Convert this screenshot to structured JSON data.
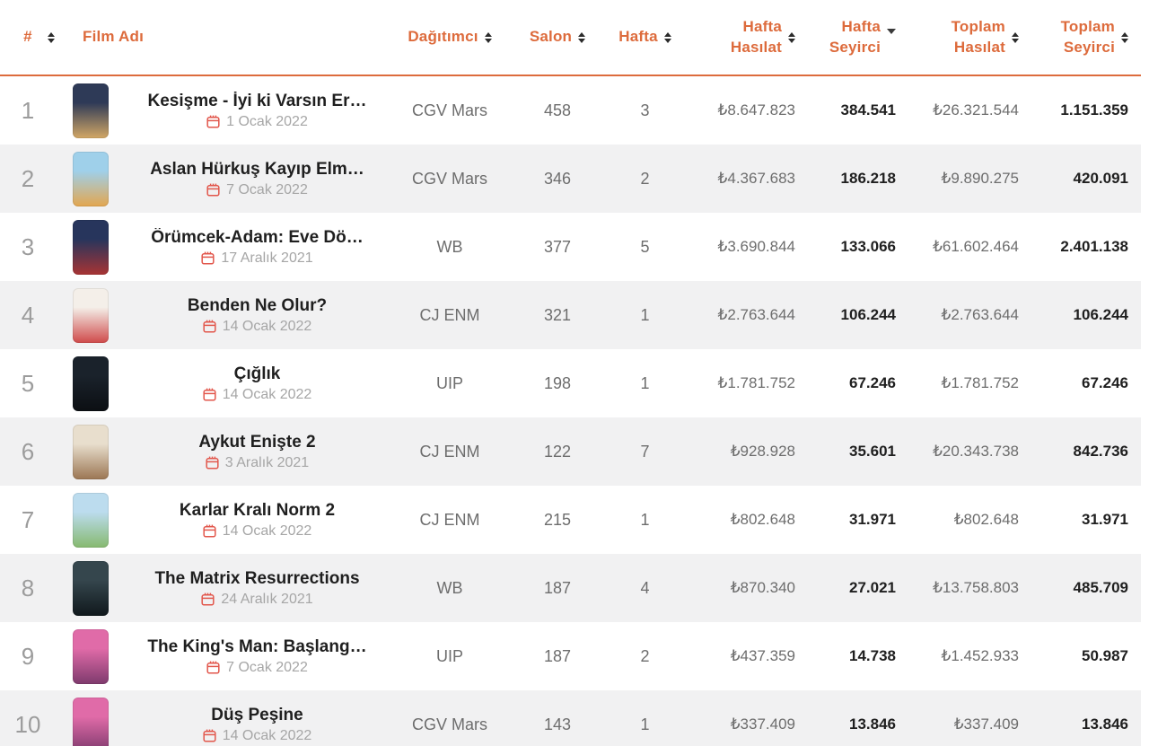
{
  "colors": {
    "accent_orange": "#dd6b3c",
    "header_border": "#dd6b3c",
    "zebra_row": "#f1f1f2",
    "calendar_icon": "#e2574c",
    "rank_gray": "#9c9c9c",
    "value_gray": "#6d6d6d",
    "value_dark": "#1f1f1f"
  },
  "columns": [
    {
      "key": "rank",
      "label": "#",
      "lines": [
        "#"
      ],
      "sort": "both",
      "align": "left"
    },
    {
      "key": "film",
      "label": "Film Adı",
      "lines": [
        "Film Adı"
      ],
      "sort": "none",
      "align": "left"
    },
    {
      "key": "distributor",
      "label": "Dağıtımcı",
      "lines": [
        "Dağıtımcı"
      ],
      "sort": "both",
      "align": "center"
    },
    {
      "key": "salon",
      "label": "Salon",
      "lines": [
        "Salon"
      ],
      "sort": "both",
      "align": "center"
    },
    {
      "key": "week",
      "label": "Hafta",
      "lines": [
        "Hafta"
      ],
      "sort": "both",
      "align": "center"
    },
    {
      "key": "week_gross",
      "label": "Hafta Hasılat",
      "lines": [
        "Hafta",
        "Hasılat"
      ],
      "sort": "both",
      "align": "right"
    },
    {
      "key": "week_admissions",
      "label": "Hafta Seyirci",
      "lines": [
        "Hafta",
        "Seyirci"
      ],
      "sort": "desc",
      "align": "right"
    },
    {
      "key": "total_gross",
      "label": "Toplam Hasılat",
      "lines": [
        "Toplam",
        "Hasılat"
      ],
      "sort": "both",
      "align": "right"
    },
    {
      "key": "total_admissions",
      "label": "Toplam Seyirci",
      "lines": [
        "Toplam",
        "Seyirci"
      ],
      "sort": "both",
      "align": "right"
    }
  ],
  "rows": [
    {
      "rank": "1",
      "title": "Kesişme - İyi ki Varsın Er…",
      "release_date": "1 Ocak 2022",
      "distributor": "CGV Mars",
      "salon": "458",
      "week": "3",
      "week_gross": "₺8.647.823",
      "week_admissions": "384.541",
      "total_gross": "₺26.321.544",
      "total_admissions": "1.151.359",
      "poster_colors": [
        "#2e3a57",
        "#d2a765"
      ]
    },
    {
      "rank": "2",
      "title": "Aslan Hürkuş Kayıp Elm…",
      "release_date": "7 Ocak 2022",
      "distributor": "CGV Mars",
      "salon": "346",
      "week": "2",
      "week_gross": "₺4.367.683",
      "week_admissions": "186.218",
      "total_gross": "₺9.890.275",
      "total_admissions": "420.091",
      "poster_colors": [
        "#9fd0ea",
        "#e3a64f"
      ]
    },
    {
      "rank": "3",
      "title": "Örümcek-Adam: Eve Dö…",
      "release_date": "17 Aralık 2021",
      "distributor": "WB",
      "salon": "377",
      "week": "5",
      "week_gross": "₺3.690.844",
      "week_admissions": "133.066",
      "total_gross": "₺61.602.464",
      "total_admissions": "2.401.138",
      "poster_colors": [
        "#27355c",
        "#a83434"
      ]
    },
    {
      "rank": "4",
      "title": "Benden Ne Olur?",
      "release_date": "14 Ocak 2022",
      "distributor": "CJ ENM",
      "salon": "321",
      "week": "1",
      "week_gross": "₺2.763.644",
      "week_admissions": "106.244",
      "total_gross": "₺2.763.644",
      "total_admissions": "106.244",
      "poster_colors": [
        "#f4efe9",
        "#cf4a4a"
      ]
    },
    {
      "rank": "5",
      "title": "Çığlık",
      "release_date": "14 Ocak 2022",
      "distributor": "UIP",
      "salon": "198",
      "week": "1",
      "week_gross": "₺1.781.752",
      "week_admissions": "67.246",
      "total_gross": "₺1.781.752",
      "total_admissions": "67.246",
      "poster_colors": [
        "#1a222b",
        "#0c0f13"
      ]
    },
    {
      "rank": "6",
      "title": "Aykut Enişte 2",
      "release_date": "3 Aralık 2021",
      "distributor": "CJ ENM",
      "salon": "122",
      "week": "7",
      "week_gross": "₺928.928",
      "week_admissions": "35.601",
      "total_gross": "₺20.343.738",
      "total_admissions": "842.736",
      "poster_colors": [
        "#e8decd",
        "#9b7653"
      ]
    },
    {
      "rank": "7",
      "title": "Karlar Kralı Norm 2",
      "release_date": "14 Ocak 2022",
      "distributor": "CJ ENM",
      "salon": "215",
      "week": "1",
      "week_gross": "₺802.648",
      "week_admissions": "31.971",
      "total_gross": "₺802.648",
      "total_admissions": "31.971",
      "poster_colors": [
        "#bcdcee",
        "#86b96f"
      ]
    },
    {
      "rank": "8",
      "title": "The Matrix Resurrections",
      "release_date": "24 Aralık 2021",
      "distributor": "WB",
      "salon": "187",
      "week": "4",
      "week_gross": "₺870.340",
      "week_admissions": "27.021",
      "total_gross": "₺13.758.803",
      "total_admissions": "485.709",
      "poster_colors": [
        "#35464d",
        "#10181c"
      ]
    },
    {
      "rank": "9",
      "title": "The King's Man: Başlang…",
      "release_date": "7 Ocak 2022",
      "distributor": "UIP",
      "salon": "187",
      "week": "2",
      "week_gross": "₺437.359",
      "week_admissions": "14.738",
      "total_gross": "₺1.452.933",
      "total_admissions": "50.987",
      "poster_colors": [
        "#e06ba8",
        "#7e3a6d"
      ]
    },
    {
      "rank": "10",
      "title": "Düş Peşine",
      "release_date": "14 Ocak 2022",
      "distributor": "CGV Mars",
      "salon": "143",
      "week": "1",
      "week_gross": "₺337.409",
      "week_admissions": "13.846",
      "total_gross": "₺337.409",
      "total_admissions": "13.846",
      "poster_colors": [
        "#e06ba8",
        "#7e3a6d"
      ]
    }
  ]
}
